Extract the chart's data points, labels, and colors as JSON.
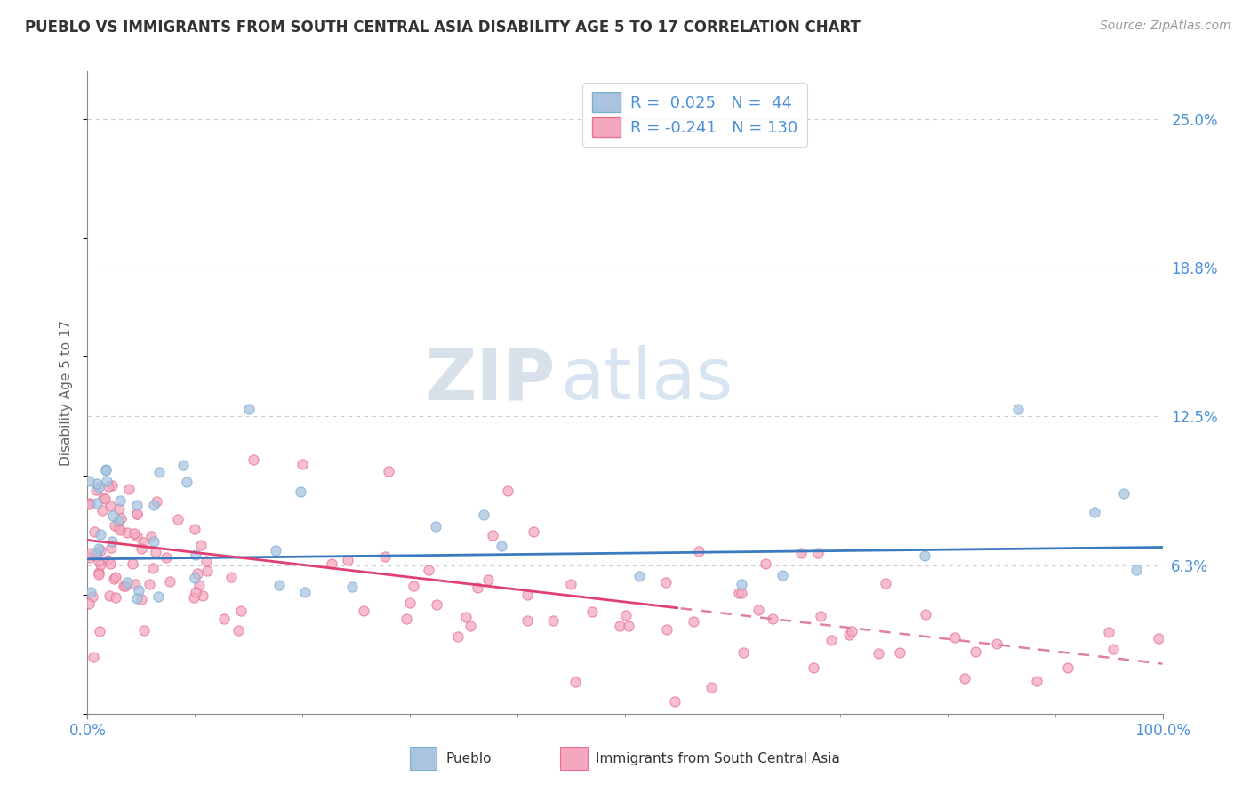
{
  "title": "PUEBLO VS IMMIGRANTS FROM SOUTH CENTRAL ASIA DISABILITY AGE 5 TO 17 CORRELATION CHART",
  "source": "Source: ZipAtlas.com",
  "ylabel": "Disability Age 5 to 17",
  "watermark_zip": "ZIP",
  "watermark_atlas": "atlas",
  "xlim": [
    0.0,
    100.0
  ],
  "ylim": [
    0.0,
    27.0
  ],
  "yticks": [
    6.25,
    12.5,
    18.75,
    25.0
  ],
  "ytick_labels": [
    "6.3%",
    "12.5%",
    "18.8%",
    "25.0%"
  ],
  "grid_color": "#cccccc",
  "background_color": "#ffffff",
  "pueblo_color": "#aac4e0",
  "pueblo_edge_color": "#7aadd4",
  "immigrant_color": "#f4a8c0",
  "immigrant_edge_color": "#e87090",
  "pueblo_R": 0.025,
  "pueblo_N": 44,
  "immigrant_R": -0.241,
  "immigrant_N": 130,
  "pueblo_line_color": "#3a7abf",
  "immigrant_line_color": "#e04070",
  "immigrant_dash_color": "#e080a0",
  "title_color": "#333333",
  "label_color": "#4a90d9",
  "axis_color": "#888888",
  "legend_R1_label": "R =  0.025   N =  44",
  "legend_R2_label": "R = -0.241   N = 130",
  "bottom_label1": "Pueblo",
  "bottom_label2": "Immigrants from South Central Asia",
  "pueblo_line_intercept": 6.5,
  "pueblo_line_slope": 0.005,
  "immigrant_line_intercept": 7.3,
  "immigrant_line_slope": -0.052,
  "immigrant_solid_end": 55.0
}
